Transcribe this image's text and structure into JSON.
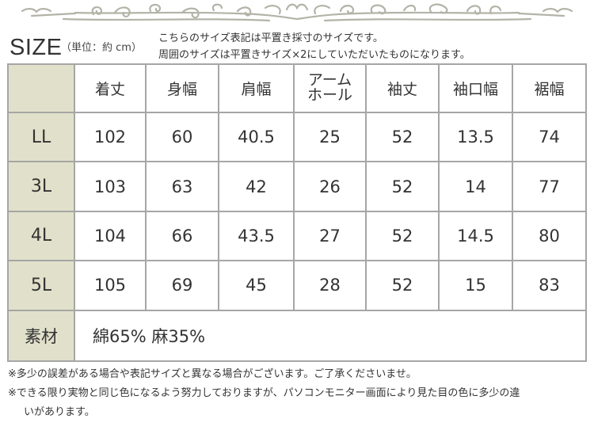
{
  "header": {
    "title": "SIZE",
    "unit": "（単位：約 cm）",
    "notes": [
      "こちらのサイズ表記は平置き採寸のサイズです。",
      "周囲のサイズは平置きサイズ×2にしていただいたものになります。"
    ]
  },
  "table": {
    "columns": [
      "着丈",
      "身幅",
      "肩幅",
      "アーム\nホール",
      "袖丈",
      "袖口幅",
      "裾幅"
    ],
    "rows": [
      {
        "size": "LL",
        "values": [
          "102",
          "60",
          "40.5",
          "25",
          "52",
          "13.5",
          "74"
        ]
      },
      {
        "size": "3L",
        "values": [
          "103",
          "63",
          "42",
          "26",
          "52",
          "14",
          "77"
        ]
      },
      {
        "size": "4L",
        "values": [
          "104",
          "66",
          "43.5",
          "27",
          "52",
          "14.5",
          "80"
        ]
      },
      {
        "size": "5L",
        "values": [
          "105",
          "69",
          "45",
          "28",
          "52",
          "15",
          "83"
        ]
      }
    ],
    "material_label": "素材",
    "material_value": "綿65% 麻35%"
  },
  "footer": {
    "notes": [
      "※多少の誤差がある場合や表記サイズと異なる場合がございます。ご了承くださいませ。",
      "※できる限り実物と同じ色になるよう努力しておりますが、パソコンモニター画面により見た目の色に多少の違",
      "いがあります。"
    ]
  },
  "colors": {
    "header_cell_bg": "#e1e1cb",
    "border": "#a6a6a6",
    "ornament": "#b3b3a8"
  }
}
